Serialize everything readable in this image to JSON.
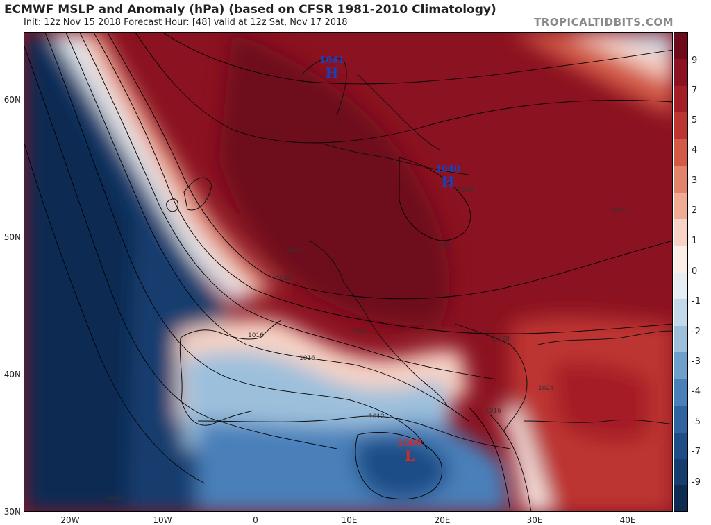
{
  "header": {
    "title": "ECMWF MSLP and Anomaly (hPa) (based on CFSR 1981-2010 Climatology)",
    "subtitle": "Init: 12z Nov 15 2018   Forecast Hour: [48]   valid at 12z Sat, Nov 17 2018",
    "brand": "TROPICALTIDBITS.COM"
  },
  "axes": {
    "lat_labels": [
      "60N",
      "50N",
      "40N",
      "30N"
    ],
    "lon_labels": [
      "20W",
      "10W",
      "0",
      "10E",
      "20E",
      "30E",
      "40E"
    ]
  },
  "colorbar": {
    "labels": [
      "9",
      "7",
      "5",
      "4",
      "3",
      "2",
      "1",
      "0",
      "-1",
      "-2",
      "-3",
      "-4",
      "-5",
      "-7",
      "-9"
    ],
    "colors": [
      "#6e0a1a",
      "#8b1220",
      "#a51d26",
      "#bd3531",
      "#d25a47",
      "#e2836b",
      "#efab94",
      "#f7d3c5",
      "#fbeee8",
      "#e6eef4",
      "#c3d8e8",
      "#9cc0dc",
      "#6fa0cc",
      "#4a80ba",
      "#2f64a1",
      "#1f4e87",
      "#163d6e",
      "#0e2c52"
    ]
  },
  "pressure_centers": [
    {
      "value": "1041",
      "symbol": "H",
      "color": "#1b3fb8"
    },
    {
      "value": "1040",
      "symbol": "H",
      "color": "#1b3fb8"
    },
    {
      "value": "1008",
      "symbol": "L",
      "color": "#d42a2a"
    }
  ],
  "isobar_labels": [
    "1024",
    "1020",
    "1016",
    "1016",
    "1020",
    "1012",
    "1016",
    "1024",
    "1028",
    "1036",
    "1036",
    "1040",
    "1008"
  ]
}
